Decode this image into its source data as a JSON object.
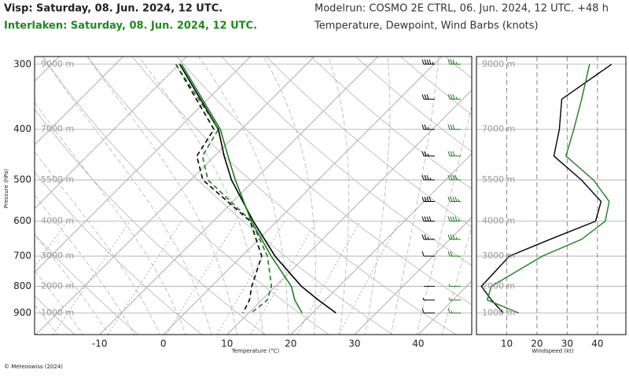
{
  "header": {
    "title_visp": "Visp: Saturday, 08. Jun. 2024, 12 UTC.",
    "title_interlaken": "Interlaken: Saturday, 08. Jun. 2024, 12 UTC.",
    "modelrun": "Modelrun: COSMO 2E CTRL, 06. Jun. 2024, 12 UTC. +48 h",
    "subtitle": "Temperature, Dewpoint, Wind Barbs (knots)"
  },
  "footer": "© Meteoswiss (2024)",
  "chart_data": [
    {
      "type": "skewt",
      "x_label": "Temperature (°C)",
      "y_label": "Pressure (hPa)",
      "log_y": true,
      "ylim": [
        990,
        290
      ],
      "yticks": [
        300,
        400,
        500,
        600,
        700,
        800,
        900
      ],
      "altitude_labels": [
        "9000 m",
        "7000 m",
        "5500 m",
        "4000 m",
        "3000 m",
        "2000 m",
        "1000 m"
      ],
      "xlim": [
        -20.2,
        48.4
      ],
      "xticks": [
        -10,
        0,
        10,
        20,
        30,
        40
      ],
      "pressure": [
        300,
        400,
        450,
        500,
        600,
        700,
        800,
        850,
        900
      ],
      "series": [
        {
          "color": "#000000",
          "dashed": false,
          "values": [
            -39.9,
            -23.6,
            -18.5,
            -13.6,
            -3.7,
            5.2,
            14.1,
            18.9,
            23.7
          ]
        },
        {
          "color": "#000000",
          "dashed": true,
          "values": [
            -40.5,
            -24.3,
            -22.8,
            -18.1,
            -4.2,
            3.1,
            6.3,
            8.1,
            9.1
          ]
        },
        {
          "color": "#1a7f1a",
          "dashed": false,
          "values": [
            -39.6,
            -23.3,
            -17.9,
            -13.0,
            -4.0,
            4.6,
            12.5,
            15.2,
            18.4
          ]
        },
        {
          "color": "#1a7f1a",
          "dashed": true,
          "values": [
            -40.5,
            -23.6,
            -21.9,
            -17.3,
            -4.0,
            4.0,
            9.4,
            10.9,
            10.4
          ]
        }
      ]
    },
    {
      "type": "wind",
      "x_label": "Windspeed (kt)",
      "log_y": true,
      "ylim": [
        990,
        290
      ],
      "xlim": [
        0,
        49.4
      ],
      "xticks": [
        10,
        20,
        30,
        40
      ],
      "pressure": [
        300,
        350,
        400,
        450,
        500,
        550,
        600,
        650,
        700,
        800,
        850,
        900
      ],
      "series": [
        {
          "color": "#000000",
          "values": [
            44.7,
            28.2,
            27.4,
            25.6,
            34.7,
            41.2,
            39.4,
            24.4,
            10.9,
            1.6,
            5.0,
            8.8
          ]
        },
        {
          "color": "#1a7f1a",
          "values": [
            37.4,
            34.8,
            32.2,
            29.6,
            38.7,
            43.9,
            42.6,
            34.8,
            21.8,
            4.9,
            3.6,
            14.0
          ]
        }
      ]
    }
  ]
}
